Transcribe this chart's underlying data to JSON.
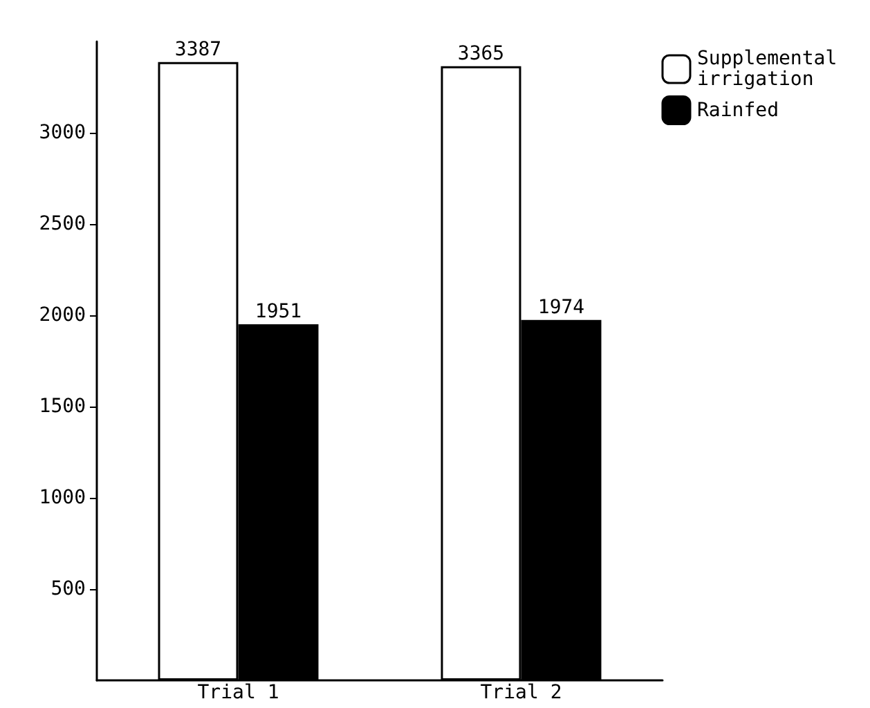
{
  "chart_data": {
    "type": "bar",
    "categories": [
      "Trial 1",
      "Trial 2"
    ],
    "series": [
      {
        "name": "Supplemental irrigation",
        "color": "#ffffff",
        "values": [
          3387,
          3365
        ]
      },
      {
        "name": "Rainfed",
        "color": "#000000",
        "values": [
          1951,
          1974
        ]
      }
    ],
    "ylim": [
      0,
      3500
    ],
    "yticks": [
      500,
      1000,
      1500,
      2000,
      2500,
      3000
    ],
    "grid": false,
    "legend": "top right",
    "data_labels": true
  }
}
